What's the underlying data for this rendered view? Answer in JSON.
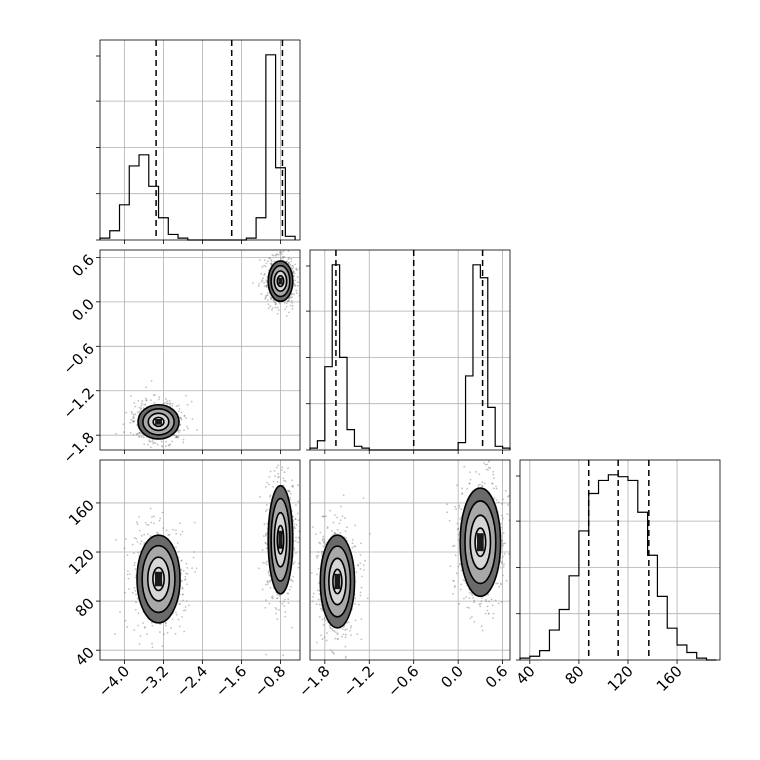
{
  "chart_data": {
    "type": "corner",
    "parameters": [
      {
        "index": 0,
        "range": [
          -4.5,
          -0.4
        ],
        "ticks": [
          "−4.0",
          "−3.2",
          "−2.4",
          "−1.6",
          "−0.8"
        ],
        "tick_values": [
          -4.0,
          -3.2,
          -2.4,
          -1.6,
          -0.8
        ],
        "quantiles": [
          -3.35,
          -1.8,
          -0.76
        ]
      },
      {
        "index": 1,
        "range": [
          -2.0,
          0.7
        ],
        "ticks": [
          "−1.8",
          "−1.2",
          "−0.6",
          "0.0",
          "0.6"
        ],
        "tick_values": [
          -1.8,
          -1.2,
          -0.6,
          0.0,
          0.6
        ],
        "quantiles": [
          -1.65,
          -0.6,
          0.33
        ]
      },
      {
        "index": 2,
        "range": [
          32,
          195
        ],
        "ticks": [
          "40",
          "80",
          "120",
          "160"
        ],
        "tick_values": [
          40,
          80,
          120,
          160
        ],
        "quantiles": [
          88,
          112,
          137
        ]
      }
    ],
    "histograms": [
      {
        "param": 0,
        "bin_edges": [
          -4.5,
          -4.3,
          -4.1,
          -3.9,
          -3.7,
          -3.5,
          -3.3,
          -3.1,
          -2.9,
          -2.7,
          -2.5,
          -2.3,
          -2.1,
          -1.9,
          -1.7,
          -1.5,
          -1.3,
          -1.1,
          -0.9,
          -0.7,
          -0.5
        ],
        "counts": [
          0.01,
          0.05,
          0.19,
          0.4,
          0.46,
          0.29,
          0.12,
          0.03,
          0.01,
          0,
          0,
          0,
          0,
          0,
          0,
          0.01,
          0.12,
          1.0,
          0.39,
          0.02
        ]
      },
      {
        "param": 1,
        "bin_edges": [
          -2.0,
          -1.9,
          -1.8,
          -1.7,
          -1.6,
          -1.5,
          -1.4,
          -1.3,
          -1.2,
          -1.1,
          -1.0,
          -0.9,
          -0.8,
          -0.7,
          -0.6,
          -0.5,
          -0.4,
          -0.3,
          -0.2,
          -0.1,
          0.0,
          0.1,
          0.2,
          0.3,
          0.4,
          0.5,
          0.6,
          0.7
        ],
        "counts": [
          0.01,
          0.05,
          0.45,
          1.0,
          0.5,
          0.11,
          0.02,
          0.01,
          0,
          0,
          0,
          0,
          0,
          0,
          0,
          0,
          0,
          0,
          0,
          0,
          0.04,
          0.4,
          1.0,
          0.93,
          0.23,
          0.02,
          0.01
        ]
      },
      {
        "param": 2,
        "bin_edges": [
          32,
          40,
          48,
          56,
          64,
          72,
          80,
          88,
          96,
          104,
          112,
          120,
          128,
          136,
          144,
          152,
          160,
          168,
          176,
          184,
          192
        ],
        "counts": [
          0.01,
          0.02,
          0.05,
          0.16,
          0.27,
          0.45,
          0.69,
          0.89,
          0.96,
          0.99,
          0.98,
          0.96,
          0.79,
          0.56,
          0.34,
          0.17,
          0.08,
          0.04,
          0.01,
          0
        ]
      }
    ],
    "joint": [
      {
        "x_param": 0,
        "y_param": 1,
        "modes": [
          {
            "cx": -3.3,
            "cy": -1.62,
            "sx": 0.2,
            "sy": 0.11
          },
          {
            "cx": -0.8,
            "cy": 0.28,
            "sx": 0.12,
            "sy": 0.13
          }
        ]
      },
      {
        "x_param": 0,
        "y_param": 2,
        "modes": [
          {
            "cx": -3.3,
            "cy": 98,
            "sx": 0.21,
            "sy": 17
          },
          {
            "cx": -0.8,
            "cy": 130,
            "sx": 0.12,
            "sy": 21
          }
        ]
      },
      {
        "x_param": 1,
        "y_param": 2,
        "modes": [
          {
            "cx": -1.63,
            "cy": 96,
            "sx": 0.11,
            "sy": 18
          },
          {
            "cx": 0.3,
            "cy": 128,
            "sx": 0.13,
            "sy": 21
          }
        ]
      }
    ]
  }
}
